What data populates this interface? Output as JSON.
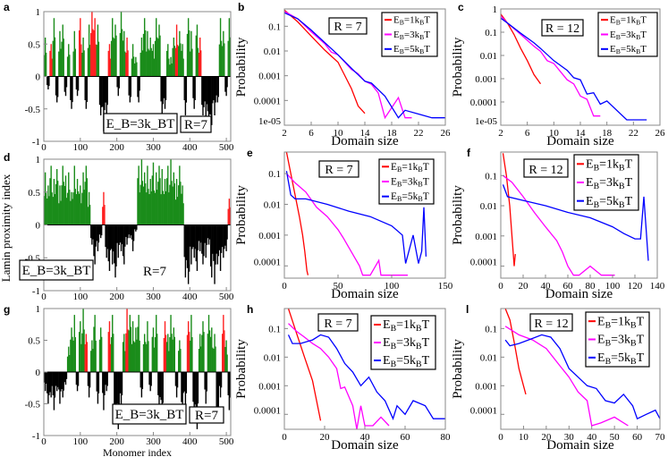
{
  "figure": {
    "shared_ylabel": "Lamin proximity index",
    "shared_xlabel": "Monomer index"
  },
  "chart_data": [
    {
      "id": "a",
      "panel_label": "a",
      "type": "bar",
      "xlim": [
        0,
        512
      ],
      "ylim": [
        -1,
        1
      ],
      "xticks": [
        "0",
        "100",
        "200",
        "300",
        "400",
        "500"
      ],
      "yticks": [
        "-1",
        "-0.5",
        "0",
        "0.5",
        "1"
      ],
      "annotations": [
        "E_B=3k_BT",
        "R=7"
      ],
      "bin_size": 8,
      "values": [
        0.6,
        -0.2,
        0.5,
        0.9,
        -0.4,
        0.7,
        0.8,
        -0.3,
        0.5,
        -0.5,
        0.7,
        -0.3,
        0.9,
        0.6,
        -0.5,
        0.8,
        1.0,
        0.9,
        0.8,
        -0.6,
        -0.85,
        -0.6,
        0.5,
        0.9,
        0.8,
        -0.3,
        1.0,
        0.7,
        0.6,
        -0.4,
        0.5,
        0.3,
        -0.4,
        0.6,
        0.9,
        0.7,
        0.6,
        0.5,
        0.9,
        0.8,
        -0.7,
        -0.5,
        0.5,
        0.3,
        0.6,
        0.8,
        0.7,
        0.5,
        -0.6,
        0.9,
        0.7,
        -0.5,
        0.8,
        0.6,
        -0.6,
        -0.7,
        -0.8,
        -0.75,
        -0.6,
        -0.4,
        0.9,
        0.7,
        -0.3,
        0.9
      ],
      "red_bins": [
        2,
        12,
        16,
        17,
        22,
        25,
        28,
        45,
        48,
        51,
        53
      ],
      "colors": {
        "positive": "#1a8c1a",
        "highlight": "#ff2020",
        "negative": "#000000"
      }
    },
    {
      "id": "b",
      "panel_label": "b",
      "type": "line",
      "xlabel": "Domain size",
      "ylabel": "Probability",
      "yscale": "log",
      "xlim": [
        2,
        26
      ],
      "ylim": [
        1e-05,
        0.5
      ],
      "xticks": [
        "2",
        "6",
        "10",
        "14",
        "18",
        "22",
        "26"
      ],
      "yticks": [
        "1e-05",
        "0.0001",
        "0.001",
        "0.01",
        "0.1"
      ],
      "annotation": "R = 7",
      "series": [
        {
          "name": "E_B=1k_BT",
          "color": "#ff0000",
          "x": [
            2,
            4,
            6,
            8,
            10,
            12,
            13,
            14
          ],
          "y": [
            0.45,
            0.15,
            0.04,
            0.011,
            0.0035,
            0.0003,
            6e-05,
            3e-05
          ]
        },
        {
          "name": "E_B=3k_BT",
          "color": "#ff00ff",
          "x": [
            2,
            4,
            6,
            8,
            9,
            10,
            12,
            13,
            14,
            15,
            16,
            17,
            19,
            20,
            21
          ],
          "y": [
            0.4,
            0.2,
            0.06,
            0.02,
            0.009,
            0.007,
            0.0018,
            0.0012,
            0.0006,
            0.00045,
            0.0002,
            2e-05,
            0.00013,
            2e-05,
            2e-05
          ]
        },
        {
          "name": "E_B=5k_BT",
          "color": "#0000ff",
          "x": [
            2,
            4,
            6,
            8,
            10,
            12,
            14,
            15,
            17,
            19,
            20,
            24,
            26
          ],
          "y": [
            0.35,
            0.2,
            0.07,
            0.022,
            0.007,
            0.002,
            0.0006,
            0.0005,
            0.00015,
            2e-05,
            4e-05,
            2e-05,
            2e-05
          ]
        }
      ]
    },
    {
      "id": "c",
      "panel_label": "c",
      "type": "line",
      "xlabel": "Domain size",
      "ylabel": "Probability",
      "yscale": "log",
      "xlim": [
        2,
        26
      ],
      "ylim": [
        1e-05,
        1
      ],
      "xticks": [
        "2",
        "6",
        "10",
        "14",
        "18",
        "22",
        "26"
      ],
      "yticks": [
        "1e-05",
        "0.0001",
        "0.001",
        "0.01",
        "0.1",
        "1"
      ],
      "annotation": "R = 12",
      "series": [
        {
          "name": "E_B=1k_BT",
          "color": "#ff0000",
          "x": [
            2,
            3,
            4,
            5,
            6,
            7,
            8
          ],
          "y": [
            0.6,
            0.25,
            0.08,
            0.02,
            0.006,
            0.0015,
            0.0006
          ]
        },
        {
          "name": "E_B=3k_BT",
          "color": "#ff00ff",
          "x": [
            2,
            3,
            5,
            7,
            8,
            9,
            10,
            11,
            12,
            13,
            14,
            15,
            16,
            17
          ],
          "y": [
            0.5,
            0.25,
            0.08,
            0.025,
            0.015,
            0.006,
            0.0045,
            0.002,
            0.0009,
            0.0006,
            0.00018,
            0.00013,
            2.5e-05,
            2.5e-05
          ]
        },
        {
          "name": "E_B=5k_BT",
          "color": "#0000ff",
          "x": [
            2,
            3,
            5,
            7,
            8,
            10,
            12,
            13,
            14,
            15,
            16,
            17,
            18,
            21,
            24
          ],
          "y": [
            0.4,
            0.25,
            0.09,
            0.035,
            0.02,
            0.006,
            0.0023,
            0.0011,
            0.0009,
            0.00022,
            0.00025,
            8e-05,
            0.00011,
            1.7e-05,
            1.7e-05
          ]
        }
      ]
    },
    {
      "id": "d",
      "panel_label": "d",
      "type": "bar",
      "xlim": [
        0,
        512
      ],
      "ylim": [
        -1,
        1
      ],
      "xticks": [
        "0",
        "100",
        "200",
        "300",
        "400",
        "500"
      ],
      "yticks": [
        "-1",
        "-0.5",
        "0",
        "0.5",
        "1"
      ],
      "annotations": [
        "E_B=3k_BT",
        "R=7"
      ],
      "bin_size": 8,
      "values": [
        0.8,
        0.6,
        0.9,
        0.7,
        0.85,
        0.6,
        0.9,
        0.75,
        0.8,
        0.5,
        0.9,
        0.7,
        0.6,
        0.8,
        0.9,
        0.5,
        -0.3,
        -0.6,
        -0.4,
        -0.2,
        0.5,
        -0.5,
        -0.7,
        -0.6,
        -0.8,
        -0.5,
        -0.4,
        -0.6,
        -0.3,
        -0.2,
        -0.4,
        -0.1,
        0.9,
        1.0,
        0.8,
        0.9,
        0.7,
        0.95,
        0.8,
        0.9,
        0.85,
        0.7,
        0.9,
        1.0,
        0.8,
        0.7,
        0.9,
        0.6,
        -0.8,
        -0.9,
        -0.6,
        -0.5,
        -0.7,
        -0.4,
        -0.6,
        -0.5,
        -0.3,
        -0.8,
        -0.9,
        -0.6,
        -0.7,
        -0.5,
        -0.4,
        0.4
      ],
      "red_bins": [
        20,
        63
      ],
      "colors": {
        "positive": "#1a8c1a",
        "highlight": "#ff2020",
        "negative": "#000000"
      }
    },
    {
      "id": "e",
      "panel_label": "e",
      "type": "line",
      "xlabel": "Domain size",
      "ylabel": "Probability",
      "yscale": "log",
      "xlim": [
        0,
        150
      ],
      "ylim": [
        4e-05,
        0.5
      ],
      "xticks": [
        "0",
        "50",
        "100",
        "150"
      ],
      "yticks": [
        "0.0001",
        "0.001",
        "0.01",
        "0.1"
      ],
      "annotation": "R = 7",
      "series": [
        {
          "name": "E_B=1k_BT",
          "color": "#ff0000",
          "x": [
            2,
            6,
            10,
            14,
            17,
            19,
            21,
            22
          ],
          "y": [
            0.5,
            0.1,
            0.02,
            0.004,
            0.001,
            0.0003,
            7e-05,
            5e-05
          ]
        },
        {
          "name": "E_B=3k_BT",
          "color": "#ff00ff",
          "x": [
            2,
            10,
            20,
            30,
            40,
            50,
            55,
            60,
            65,
            70,
            73,
            80,
            88,
            90,
            115
          ],
          "y": [
            0.1,
            0.05,
            0.025,
            0.008,
            0.004,
            0.0015,
            0.0008,
            0.0004,
            0.0002,
            0.0001,
            5e-05,
            5e-05,
            0.00015,
            5e-05,
            5e-05
          ]
        },
        {
          "name": "E_B=5k_BT",
          "color": "#0000ff",
          "x": [
            2,
            6,
            10,
            20,
            40,
            60,
            80,
            100,
            110,
            113,
            120,
            125,
            128,
            130,
            132
          ],
          "y": [
            0.12,
            0.02,
            0.015,
            0.015,
            0.01,
            0.006,
            0.004,
            0.002,
            0.001,
            0.00012,
            0.001,
            0.00012,
            0.0003,
            0.008,
            0.0002
          ]
        }
      ]
    },
    {
      "id": "f",
      "panel_label": "f",
      "type": "line",
      "xlabel": "Domain size",
      "ylabel": "Probability",
      "yscale": "log",
      "xlim": [
        0,
        140
      ],
      "ylim": [
        4e-05,
        0.6
      ],
      "xticks": [
        "0",
        "20",
        "40",
        "60",
        "80",
        "100",
        "120",
        "140"
      ],
      "yticks": [
        "0.0001",
        "0.001",
        "0.01",
        "0.1"
      ],
      "annotation": "R = 12",
      "series": [
        {
          "name": "E_B=1k_BT",
          "color": "#ff0000",
          "x": [
            2,
            5,
            8,
            10,
            12,
            13
          ],
          "y": [
            0.55,
            0.1,
            0.01,
            0.001,
            0.0001,
            0.00025
          ]
        },
        {
          "name": "E_B=3k_BT",
          "color": "#ff00ff",
          "x": [
            2,
            10,
            20,
            30,
            40,
            50,
            55,
            60,
            65,
            70,
            80,
            90,
            102
          ],
          "y": [
            0.1,
            0.06,
            0.02,
            0.006,
            0.002,
            0.0007,
            0.0003,
            0.0001,
            5e-05,
            5e-05,
            0.0001,
            5e-05,
            5e-05
          ]
        },
        {
          "name": "E_B=5k_BT",
          "color": "#0000ff",
          "x": [
            2,
            6,
            20,
            40,
            60,
            80,
            100,
            110,
            120,
            125,
            128,
            132
          ],
          "y": [
            0.05,
            0.02,
            0.015,
            0.01,
            0.006,
            0.004,
            0.002,
            0.0012,
            0.0008,
            0.0008,
            0.02,
            0.00015
          ]
        }
      ]
    },
    {
      "id": "g",
      "panel_label": "g",
      "type": "bar",
      "xlim": [
        0,
        512
      ],
      "ylim": [
        -1,
        1
      ],
      "xlabel": "Monomer index",
      "xticks": [
        "0",
        "100",
        "200",
        "300",
        "400",
        "500"
      ],
      "yticks": [
        "-1",
        "-0.5",
        "0",
        "0.5",
        "1"
      ],
      "annotations": [
        "E_B=3k_BT",
        "R=7"
      ],
      "bin_size": 8,
      "values": [
        -0.3,
        -0.5,
        -0.4,
        -0.6,
        -0.3,
        -0.5,
        -0.4,
        -0.2,
        0.4,
        0.7,
        0.9,
        -0.3,
        0.8,
        1.0,
        0.6,
        -0.4,
        0.5,
        0.9,
        -0.5,
        0.7,
        -0.6,
        -0.3,
        0.8,
        0.9,
        -0.7,
        -0.9,
        -0.5,
        0.6,
        1.0,
        0.9,
        0.8,
        0.7,
        0.9,
        -0.4,
        0.6,
        0.8,
        -0.3,
        0.7,
        0.9,
        -0.5,
        -0.8,
        0.8,
        0.6,
        0.9,
        0.7,
        -0.4,
        0.5,
        -0.6,
        -0.5,
        0.8,
        0.9,
        -0.7,
        -0.9,
        0.6,
        0.8,
        -0.5,
        0.9,
        0.7,
        0.6,
        -0.8,
        -0.4,
        0.9,
        0.5,
        -0.6
      ],
      "red_bins": [
        14,
        22,
        28,
        33,
        41,
        49,
        61
      ],
      "colors": {
        "positive": "#1a8c1a",
        "highlight": "#ff2020",
        "negative": "#000000"
      }
    },
    {
      "id": "h",
      "panel_label": "h",
      "type": "line",
      "xlabel": "Domain size",
      "ylabel": "Probability",
      "yscale": "log",
      "xlim": [
        0,
        80
      ],
      "ylim": [
        3e-05,
        0.5
      ],
      "xticks": [
        "0",
        "20",
        "40",
        "60",
        "80"
      ],
      "yticks": [
        "0.0001",
        "0.001",
        "0.01",
        "0.1"
      ],
      "annotation": "R = 7",
      "series": [
        {
          "name": "E_B=1k_BT",
          "color": "#ff0000",
          "x": [
            2,
            6,
            10,
            14,
            16,
            18
          ],
          "y": [
            0.5,
            0.07,
            0.01,
            0.0015,
            0.0003,
            6e-05
          ]
        },
        {
          "name": "E_B=3k_BT",
          "color": "#ff00ff",
          "x": [
            2,
            6,
            10,
            14,
            18,
            22,
            26,
            28,
            30,
            34,
            36,
            38,
            40,
            44,
            48,
            52
          ],
          "y": [
            0.15,
            0.08,
            0.05,
            0.03,
            0.02,
            0.01,
            0.004,
            0.0008,
            0.0009,
            0.0002,
            3e-05,
            0.0002,
            4e-05,
            4e-05,
            8e-05,
            4e-05
          ]
        },
        {
          "name": "E_B=5k_BT",
          "color": "#0000ff",
          "x": [
            2,
            4,
            8,
            14,
            18,
            22,
            26,
            30,
            34,
            38,
            42,
            46,
            50,
            54,
            56,
            60,
            64,
            70,
            74,
            80
          ],
          "y": [
            0.06,
            0.03,
            0.03,
            0.04,
            0.06,
            0.05,
            0.02,
            0.006,
            0.003,
            0.001,
            0.002,
            0.0006,
            0.0003,
            7e-05,
            0.0002,
            0.0001,
            0.0003,
            0.0002,
            7e-05,
            7e-05
          ]
        }
      ]
    },
    {
      "id": "l",
      "panel_label": "l",
      "type": "line",
      "xlabel": "Domain size",
      "ylabel": "Probability",
      "yscale": "log",
      "xlim": [
        0,
        70
      ],
      "ylim": [
        3e-05,
        0.5
      ],
      "xticks": [
        "0",
        "10",
        "20",
        "30",
        "40",
        "50",
        "60",
        "70"
      ],
      "yticks": [
        "0.0001",
        "0.001",
        "0.01",
        "0.1"
      ],
      "annotation": "R = 12",
      "series": [
        {
          "name": "E_B=1k_BT",
          "color": "#ff0000",
          "x": [
            2,
            4,
            6,
            8,
            10,
            11
          ],
          "y": [
            0.5,
            0.2,
            0.03,
            0.004,
            0.001,
            0.0005
          ]
        },
        {
          "name": "E_B=3k_BT",
          "color": "#ff00ff",
          "x": [
            2,
            8,
            14,
            20,
            26,
            30,
            34,
            38,
            40,
            44,
            50,
            56
          ],
          "y": [
            0.12,
            0.06,
            0.04,
            0.02,
            0.005,
            0.002,
            0.0006,
            0.0003,
            4e-05,
            5e-05,
            8e-05,
            4e-05
          ]
        },
        {
          "name": "E_B=5k_BT",
          "color": "#0000ff",
          "x": [
            2,
            4,
            8,
            14,
            18,
            22,
            26,
            30,
            34,
            38,
            42,
            46,
            50,
            54,
            58,
            60,
            64,
            68,
            70
          ],
          "y": [
            0.04,
            0.025,
            0.03,
            0.045,
            0.06,
            0.05,
            0.02,
            0.004,
            0.002,
            0.001,
            0.0008,
            0.0003,
            0.00025,
            0.0005,
            0.0002,
            7e-05,
            0.0001,
            0.00014,
            7e-05
          ]
        }
      ]
    }
  ]
}
